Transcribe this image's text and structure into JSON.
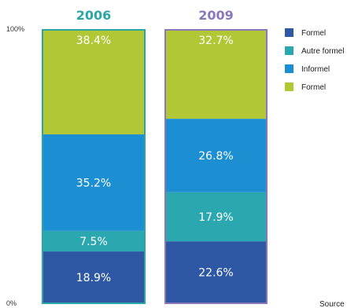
{
  "chart_data": {
    "type": "bar",
    "stacked": true,
    "categories": [
      "2006",
      "2009"
    ],
    "category_colors": [
      "#2aa7a5",
      "#8a78b8"
    ],
    "yticks": [
      "100%",
      "0%"
    ],
    "ylim": [
      0,
      100
    ],
    "series": [
      {
        "name": "Formel",
        "color": "#2f58a4",
        "values": [
          18.9,
          22.6
        ],
        "labels": [
          "18.9%",
          "22.6%"
        ]
      },
      {
        "name": "Autre formel",
        "color": "#2ba7b0",
        "values": [
          7.5,
          17.9
        ],
        "labels": [
          "7.5%",
          "17.9%"
        ]
      },
      {
        "name": "Informel",
        "color": "#1c8fd3",
        "values": [
          35.2,
          26.8
        ],
        "labels": [
          "35.2%",
          "26.8%"
        ]
      },
      {
        "name": "Formel",
        "color": "#b2c736",
        "values": [
          38.4,
          32.7
        ],
        "labels": [
          "38.4%",
          "32.7%"
        ]
      }
    ],
    "legend": [
      "Formel",
      "Autre formel",
      "Informel",
      "Formel"
    ],
    "legend_position": "right",
    "grid": false
  },
  "source": {
    "label": "Source"
  }
}
